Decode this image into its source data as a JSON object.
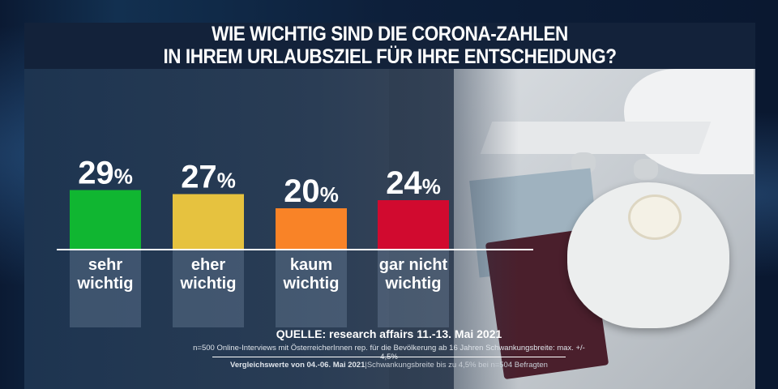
{
  "title": {
    "line1": "WIE WICHTIG SIND DIE CORONA-ZAHLEN",
    "line2": "IN IHREM URLAUBSZIEL FÜR IHRE ENTSCHEIDUNG?"
  },
  "chart_data": {
    "type": "bar",
    "title": "WIE WICHTIG SIND DIE CORONA-ZAHLEN IN IHREM URLAUBSZIEL FÜR IHRE ENTSCHEIDUNG?",
    "categories": [
      "sehr wichtig",
      "eher wichtig",
      "kaum wichtig",
      "gar nicht wichtig"
    ],
    "category_lines": [
      [
        "sehr",
        "wichtig"
      ],
      [
        "eher",
        "wichtig"
      ],
      [
        "kaum",
        "wichtig"
      ],
      [
        "gar nicht",
        "wichtig"
      ]
    ],
    "values": [
      29,
      27,
      20,
      24
    ],
    "data_labels": [
      "29%",
      "27%",
      "20%",
      "24%"
    ],
    "colors": [
      "#10b631",
      "#e6c23f",
      "#f98327",
      "#d10a2f"
    ],
    "unit": "%",
    "grid": false
  },
  "footer": {
    "source": "QUELLE: research affairs 11.-13. Mai 2021",
    "info": "n=500 Online-Interviews mit ÖsterreicherInnen rep. für die Bevölkerung ab 16 Jahren  Schwankungsbreite: max. +/- 4,5%",
    "comparison_label": "Vergleichswerte von  04.-06. Mai 2021",
    "comparison_note": "|Schwankungsbreite bis zu 4,5% bei n=504 Befragten"
  }
}
